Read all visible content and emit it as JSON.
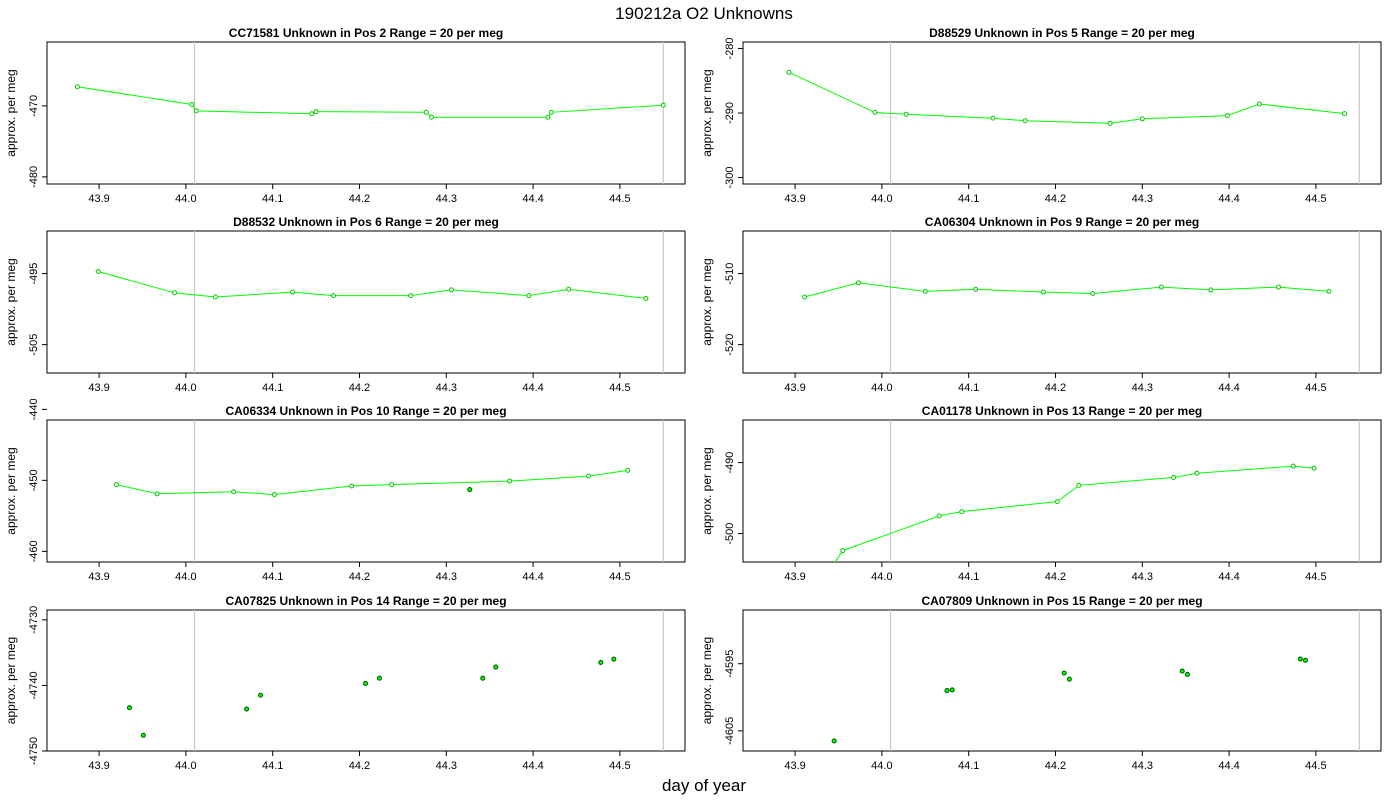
{
  "title": "190212a  O2 Unknowns",
  "xlabel": "day of year",
  "colors": {
    "line": "#00ff00",
    "marker_edge": "#006400",
    "marker_line": "#00cc00",
    "vline": "#c8c8c8",
    "frame": "#000000"
  },
  "chart_data": [
    {
      "type": "line",
      "title": "CC71581    Unknown in Pos 2          Range = 20 per meg",
      "ylabel": "approx. per meg",
      "xlim": [
        43.84,
        44.575
      ],
      "ylim": [
        -481,
        -461
      ],
      "xticks": [
        43.9,
        44.0,
        44.1,
        44.2,
        44.3,
        44.4,
        44.5
      ],
      "yticks": [
        -480,
        -470
      ],
      "vlines": [
        44.01,
        44.55
      ],
      "connected": true,
      "x": [
        43.875,
        44.007,
        44.012,
        44.145,
        44.15,
        44.277,
        44.283,
        44.417,
        44.421,
        44.55
      ],
      "y": [
        -467.3,
        -469.8,
        -470.7,
        -471.1,
        -470.8,
        -470.9,
        -471.6,
        -471.6,
        -470.9,
        -469.9
      ]
    },
    {
      "type": "line",
      "title": "D88529    Unknown in Pos 5          Range = 20 per meg",
      "ylabel": "approx. per meg",
      "xlim": [
        43.84,
        44.575
      ],
      "ylim": [
        -301,
        -279
      ],
      "xticks": [
        43.9,
        44.0,
        44.1,
        44.2,
        44.3,
        44.4,
        44.5
      ],
      "yticks": [
        -300,
        -290,
        -280
      ],
      "vlines": [
        44.01,
        44.55
      ],
      "connected": true,
      "x": [
        43.893,
        43.992,
        44.028,
        44.128,
        44.165,
        44.263,
        44.3,
        44.398,
        44.435,
        44.533
      ],
      "y": [
        -283.7,
        -289.9,
        -290.2,
        -290.8,
        -291.2,
        -291.6,
        -290.9,
        -290.4,
        -288.6,
        -290.1
      ]
    },
    {
      "type": "line",
      "title": "D88532    Unknown in Pos 6          Range = 20 per meg",
      "ylabel": "approx. per meg",
      "xlim": [
        43.84,
        44.575
      ],
      "ylim": [
        -509,
        -489
      ],
      "xticks": [
        43.9,
        44.0,
        44.1,
        44.2,
        44.3,
        44.4,
        44.5
      ],
      "yticks": [
        -505,
        -495
      ],
      "vlines": [
        44.01,
        44.55
      ],
      "connected": true,
      "x": [
        43.899,
        43.987,
        44.034,
        44.123,
        44.17,
        44.259,
        44.306,
        44.395,
        44.441,
        44.53
      ],
      "y": [
        -494.7,
        -497.7,
        -498.3,
        -497.6,
        -498.1,
        -498.1,
        -497.3,
        -498.1,
        -497.2,
        -498.5
      ]
    },
    {
      "type": "line",
      "title": "CA06304    Unknown in Pos 9          Range = 20 per meg",
      "ylabel": "approx. per meg",
      "xlim": [
        43.84,
        44.575
      ],
      "ylim": [
        -524,
        -504
      ],
      "xticks": [
        43.9,
        44.0,
        44.1,
        44.2,
        44.3,
        44.4,
        44.5
      ],
      "yticks": [
        -520,
        -510
      ],
      "vlines": [
        44.01,
        44.55
      ],
      "connected": true,
      "x": [
        43.911,
        43.973,
        44.05,
        44.108,
        44.186,
        44.243,
        44.322,
        44.379,
        44.457,
        44.515
      ],
      "y": [
        -513.3,
        -511.3,
        -512.5,
        -512.2,
        -512.6,
        -512.8,
        -511.9,
        -512.3,
        -511.9,
        -512.5
      ]
    },
    {
      "type": "line",
      "title": "CA06334    Unknown in Pos 10          Range = 20 per meg",
      "ylabel": "approx. per meg",
      "xlim": [
        43.84,
        44.575
      ],
      "ylim": [
        -461.5,
        -441.5
      ],
      "xticks": [
        43.9,
        44.0,
        44.1,
        44.2,
        44.3,
        44.4,
        44.5
      ],
      "yticks": [
        -460,
        -450,
        -440
      ],
      "vlines": [
        44.01,
        44.55
      ],
      "connected": true,
      "x": [
        43.92,
        43.967,
        44.055,
        44.102,
        44.191,
        44.237,
        44.373,
        44.464,
        44.509
      ],
      "y": [
        -450.6,
        -451.9,
        -451.6,
        -452.0,
        -450.8,
        -450.6,
        -450.1,
        -449.4,
        -448.6
      ],
      "extra_points": {
        "x": [
          44.327
        ],
        "y": [
          -451.3
        ]
      }
    },
    {
      "type": "line",
      "title": "CA01178    Unknown in Pos 13          Range = 20 per meg",
      "ylabel": "approx. per meg",
      "xlim": [
        43.84,
        44.575
      ],
      "ylim": [
        -504,
        -484
      ],
      "xticks": [
        43.9,
        44.0,
        44.1,
        44.2,
        44.3,
        44.4,
        44.5
      ],
      "yticks": [
        -500,
        -490
      ],
      "vlines": [
        44.01,
        44.55
      ],
      "connected": true,
      "x": [
        43.93,
        43.955,
        44.066,
        44.092,
        44.202,
        44.227,
        44.336,
        44.363,
        44.474,
        44.498
      ],
      "y": [
        -507.0,
        -502.4,
        -497.5,
        -496.9,
        -495.5,
        -493.2,
        -492.1,
        -491.5,
        -490.5,
        -490.8
      ]
    },
    {
      "type": "scatter",
      "title": "CA07825    Unknown in Pos 14          Range = 20 per meg",
      "ylabel": "approx. per meg",
      "xlim": [
        43.84,
        44.575
      ],
      "ylim": [
        -4750,
        -4728.5
      ],
      "xticks": [
        43.9,
        44.0,
        44.1,
        44.2,
        44.3,
        44.4,
        44.5
      ],
      "yticks": [
        -4750,
        -4740,
        -4730
      ],
      "vlines": [
        44.01,
        44.55
      ],
      "connected": false,
      "x": [
        43.935,
        43.951,
        44.07,
        44.086,
        44.207,
        44.223,
        44.342,
        44.357,
        44.478,
        44.493
      ],
      "y": [
        -4743.4,
        -4747.6,
        -4743.6,
        -4741.5,
        -4739.7,
        -4738.9,
        -4738.9,
        -4737.2,
        -4736.5,
        -4736.0
      ]
    },
    {
      "type": "scatter",
      "title": "CA07809    Unknown in Pos 15          Range = 20 per meg",
      "ylabel": "approx. per meg",
      "xlim": [
        43.84,
        44.575
      ],
      "ylim": [
        -4608,
        -4587
      ],
      "xticks": [
        43.9,
        44.0,
        44.1,
        44.2,
        44.3,
        44.4,
        44.5
      ],
      "yticks": [
        -4605,
        -4595
      ],
      "vlines": [
        44.01,
        44.55
      ],
      "connected": false,
      "x": [
        43.945,
        44.075,
        44.081,
        44.21,
        44.216,
        44.346,
        44.352,
        44.482,
        44.488
      ],
      "y": [
        -4606.5,
        -4599.0,
        -4598.9,
        -4596.4,
        -4597.3,
        -4596.1,
        -4596.6,
        -4594.3,
        -4594.5
      ]
    }
  ]
}
